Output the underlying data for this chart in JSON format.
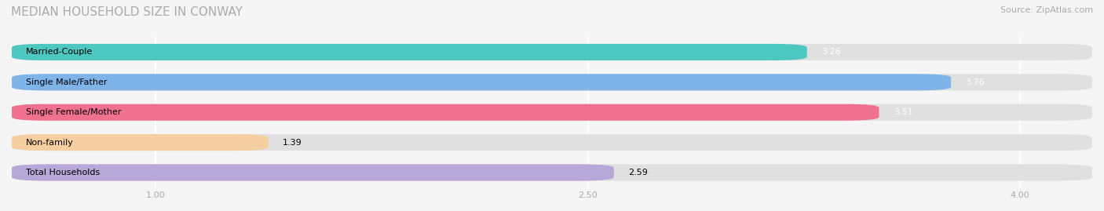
{
  "title": "MEDIAN HOUSEHOLD SIZE IN CONWAY",
  "source": "Source: ZipAtlas.com",
  "categories": [
    "Married-Couple",
    "Single Male/Father",
    "Single Female/Mother",
    "Non-family",
    "Total Households"
  ],
  "values": [
    3.26,
    3.76,
    3.51,
    1.39,
    2.59
  ],
  "bar_colors": [
    "#4DC8C0",
    "#7EB4E8",
    "#F07090",
    "#F5CFA0",
    "#B8A8D8"
  ],
  "label_colors": [
    "black",
    "black",
    "black",
    "black",
    "black"
  ],
  "value_colors": [
    "white",
    "white",
    "white",
    "black",
    "black"
  ],
  "xlim": [
    0.5,
    4.25
  ],
  "xticks": [
    1.0,
    2.5,
    4.0
  ],
  "xtick_labels": [
    "1.00",
    "2.50",
    "4.00"
  ],
  "bar_height": 0.55,
  "background_color": "#f5f5f5",
  "title_fontsize": 11,
  "source_fontsize": 8,
  "label_fontsize": 8,
  "value_fontsize": 8,
  "tick_fontsize": 8
}
